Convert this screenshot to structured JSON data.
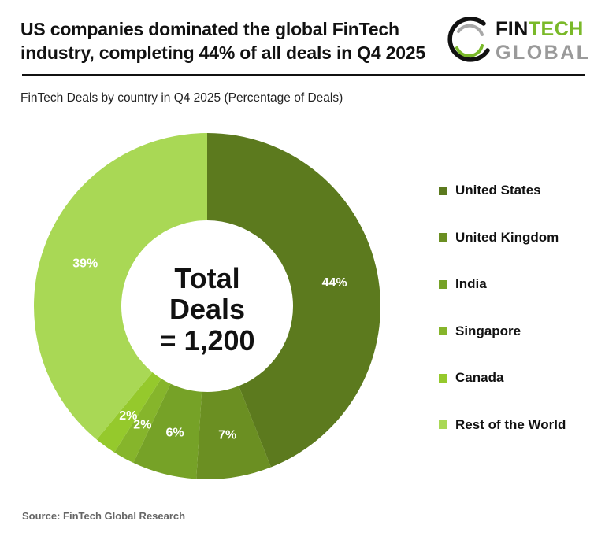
{
  "header": {
    "title_line1": "US companies dominated the global FinTech",
    "title_line2": "industry, completing 44% of all deals in Q4 2025",
    "subtitle": "FinTech Deals by country in Q4 2025 (Percentage of Deals)"
  },
  "logo": {
    "fin": "FIN",
    "tech": "TECH",
    "global": "GLOBAL"
  },
  "center_label": {
    "line1": "Total",
    "line2": "Deals",
    "line3": "= 1,200"
  },
  "footer": {
    "source": "Source: FinTech Global Research"
  },
  "chart_data": {
    "type": "pie",
    "subtype": "donut",
    "title": "US companies dominated the global FinTech industry, completing 44% of all deals in Q4 2025",
    "subtitle": "FinTech Deals by country in Q4 2025 (Percentage of Deals)",
    "categories": [
      "United States",
      "United Kingdom",
      "India",
      "Singapore",
      "Canada",
      "Rest of the World"
    ],
    "values": [
      44,
      7,
      6,
      2,
      2,
      39
    ],
    "value_labels": [
      "44%",
      "7%",
      "6%",
      "2%",
      "2%",
      "39%"
    ],
    "colors": [
      "#5c7a1e",
      "#6b8f22",
      "#76a227",
      "#86b52b",
      "#95c92c",
      "#a9d855"
    ],
    "center_text": "Total Deals = 1,200",
    "total": 1200,
    "unit": "%",
    "legend_position": "right",
    "start_angle_deg": 0,
    "direction": "clockwise"
  }
}
